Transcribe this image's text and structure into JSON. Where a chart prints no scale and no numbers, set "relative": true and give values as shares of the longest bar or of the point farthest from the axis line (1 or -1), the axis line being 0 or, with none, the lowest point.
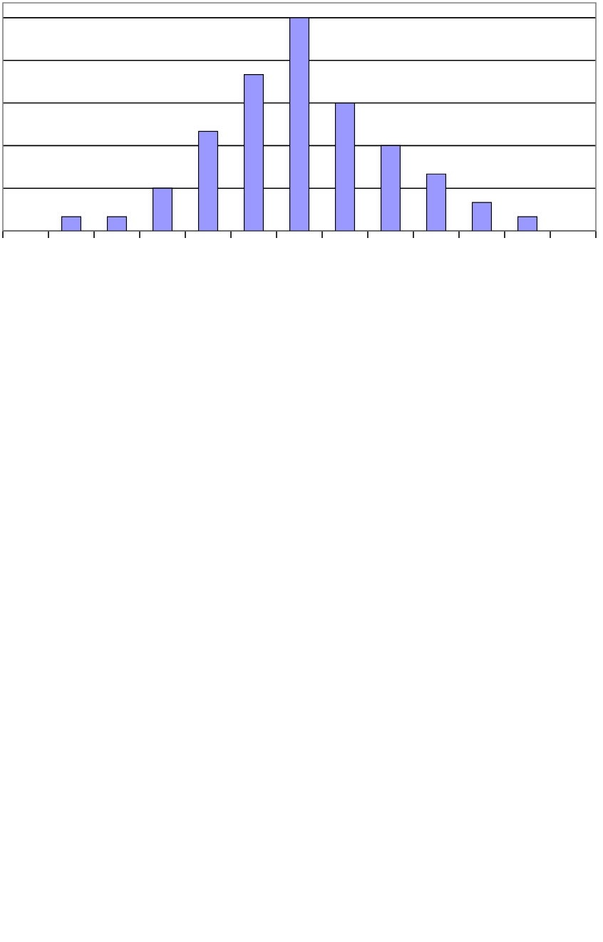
{
  "chart_data": {
    "type": "bar",
    "relative": true,
    "categories": [
      null,
      null,
      null,
      null,
      null,
      null,
      null,
      null,
      null,
      null,
      null
    ],
    "values": [
      0.0667,
      0.0667,
      0.2,
      0.4667,
      0.7333,
      1,
      0.6,
      0.4,
      0.2667,
      0.1333,
      0.0667
    ],
    "color": "#9999ff",
    "grid": "y"
  }
}
